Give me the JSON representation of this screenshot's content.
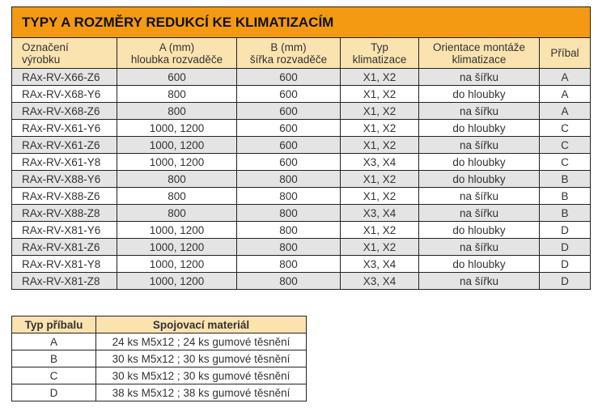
{
  "main_table": {
    "title": "TYPY A ROZMĚRY REDUKCÍ KE KLIMATIZACÍM",
    "headers": [
      [
        "Označení",
        "výrobku"
      ],
      [
        "A (mm)",
        "hloubka rozvaděče"
      ],
      [
        "B (mm)",
        "šířka rozvaděče"
      ],
      [
        "Typ",
        "klimatizace"
      ],
      [
        "Orientace montáže",
        "klimatizace"
      ],
      [
        "Příbal",
        ""
      ]
    ],
    "rows": [
      [
        "RAx-RV-X66-Z6",
        "600",
        "600",
        "X1, X2",
        "na šířku",
        "A"
      ],
      [
        "RAx-RV-X68-Y6",
        "800",
        "600",
        "X1, X2",
        "do hloubky",
        "A"
      ],
      [
        "RAx-RV-X68-Z6",
        "800",
        "600",
        "X1, X2",
        "na šířku",
        "A"
      ],
      [
        "RAx-RV-X61-Y6",
        "1000, 1200",
        "600",
        "X1, X2",
        "do hloubky",
        "C"
      ],
      [
        "RAx-RV-X61-Z6",
        "1000, 1200",
        "600",
        "X1, X2",
        "na šířku",
        "C"
      ],
      [
        "RAx-RV-X61-Y8",
        "1000, 1200",
        "600",
        "X3, X4",
        "do hloubky",
        "C"
      ],
      [
        "RAx-RV-X88-Y6",
        "800",
        "800",
        "X1, X2",
        "do hloubky",
        "B"
      ],
      [
        "RAx-RV-X88-Z6",
        "800",
        "800",
        "X1, X2",
        "na šířku",
        "B"
      ],
      [
        "RAx-RV-X88-Z8",
        "800",
        "800",
        "X3, X4",
        "na šířku",
        "B"
      ],
      [
        "RAx-RV-X81-Y6",
        "1000, 1200",
        "800",
        "X1, X2",
        "do hloubky",
        "D"
      ],
      [
        "RAx-RV-X81-Z6",
        "1000, 1200",
        "800",
        "X1, X2",
        "na šířku",
        "D"
      ],
      [
        "RAx-RV-X81-Y8",
        "1000, 1200",
        "800",
        "X3, X4",
        "do hloubky",
        "D"
      ],
      [
        "RAx-RV-X81-Z8",
        "1000, 1200",
        "800",
        "X3, X4",
        "na šířku",
        "D"
      ]
    ]
  },
  "pack_table": {
    "headers": [
      "Typ příbalu",
      "Spojovací materiál"
    ],
    "rows": [
      [
        "A",
        "24 ks M5x12 ; 24 ks gumové těsnění"
      ],
      [
        "B",
        "30 ks M5x12 ; 30 ks gumové těsnění"
      ],
      [
        "C",
        "30 ks M5x12 ; 30 ks gumové těsnění"
      ],
      [
        "D",
        "38 ks M5x12 ; 38 ks gumové těsnění"
      ]
    ]
  },
  "colors": {
    "title_bg": "#f39a12",
    "header_bg": "#fbe3b0",
    "stripe": "#e4e4e4"
  }
}
